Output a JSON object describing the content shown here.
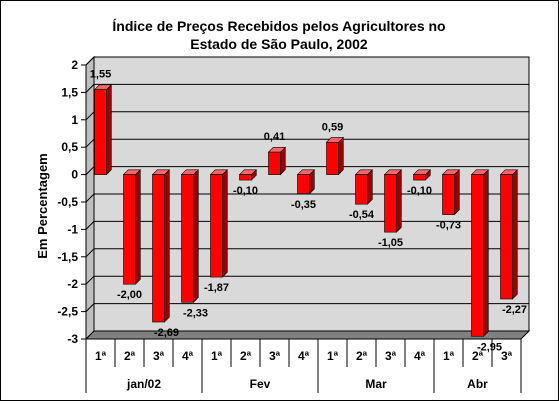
{
  "chart_data": {
    "type": "bar",
    "title_line1": "Índice de Preços Recebidos pelos Agricultores no",
    "title_line2": "Estado de São Paulo, 2002",
    "ylabel": "Em Percentagem",
    "xlabel": "",
    "ylim": [
      -3,
      2
    ],
    "yticks": [
      "2",
      "1,5",
      "1",
      "0,5",
      "0",
      "-0,5",
      "-1",
      "-1,5",
      "-2",
      "-2,5",
      "-3"
    ],
    "ytick_values": [
      2,
      1.5,
      1,
      0.5,
      0,
      -0.5,
      -1,
      -1.5,
      -2,
      -2.5,
      -3
    ],
    "grid": true,
    "legend": "none",
    "categories": [
      "1ª",
      "2ª",
      "3ª",
      "4ª",
      "1ª",
      "2ª",
      "3ª",
      "4ª",
      "1ª",
      "2ª",
      "3ª",
      "4ª",
      "1ª",
      "2ª",
      "3ª"
    ],
    "values": [
      1.55,
      -2.0,
      -2.69,
      -2.33,
      -1.87,
      -0.1,
      0.41,
      -0.35,
      0.59,
      -0.54,
      -1.05,
      -0.1,
      -0.73,
      -2.95,
      -2.27
    ],
    "data_labels": [
      "1,55",
      "-2,00",
      "-2,69",
      "-2,33",
      "-1,87",
      "-0,10",
      "0,41",
      "-0,35",
      "0,59",
      "-0,54",
      "-1,05",
      "-0,10",
      "-0,73",
      "-2,95",
      "-2,27"
    ],
    "groups": [
      {
        "label": "jan/02",
        "count": 4
      },
      {
        "label": "Fev",
        "count": 4
      },
      {
        "label": "Mar",
        "count": 4
      },
      {
        "label": "Abr",
        "count": 3
      }
    ],
    "colors": {
      "bar_front": "#ff0000",
      "bar_side": "#990000",
      "bar_top": "#ff6666",
      "wall": "#d9d9d9",
      "floor": "#808080",
      "grid": "#000000",
      "background": "#ffffff"
    }
  }
}
